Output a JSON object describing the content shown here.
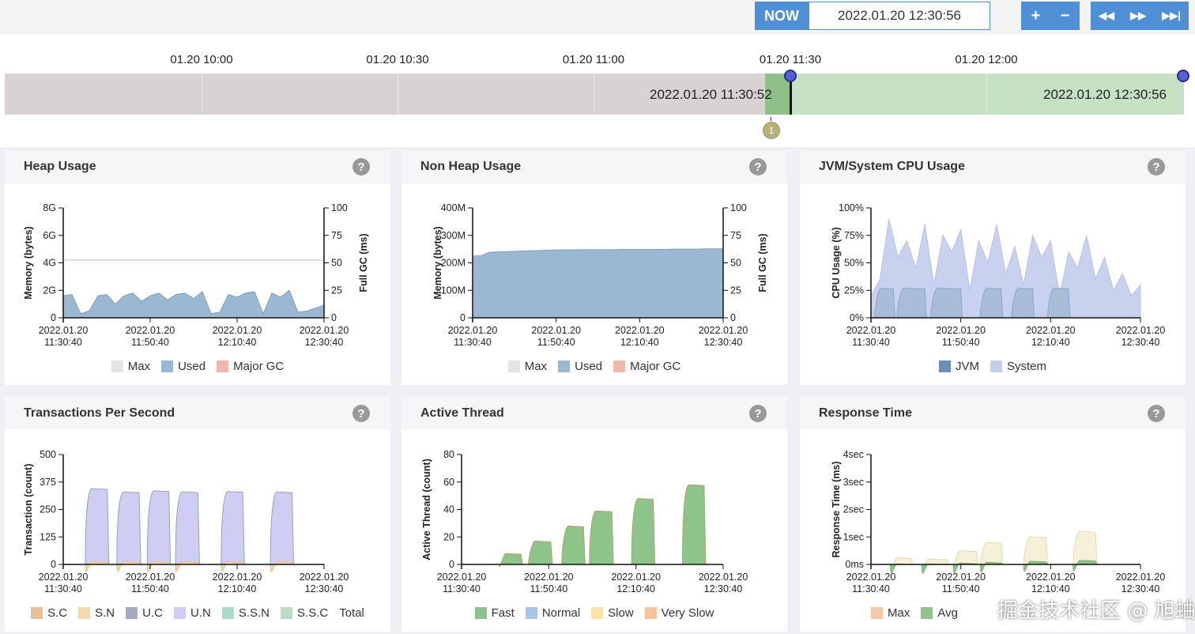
{
  "header": {
    "now_label": "NOW",
    "current_time": "2022.01.20 12:30:56",
    "zoom_in": "+",
    "zoom_out": "−",
    "rewind": "◀◀",
    "forward": "▶▶",
    "end": "▶▶|"
  },
  "timeline": {
    "labels": [
      "01.20 10:00",
      "01.20 10:30",
      "01.20 11:00",
      "01.20 11:30",
      "01.20 12:00"
    ],
    "selection_start": "2022.01.20 11:30:52",
    "selection_end": "2022.01.20 12:30:56",
    "marker": "1",
    "colors": {
      "unselected": "#d8d2d2",
      "selected": "#c7e1c4"
    }
  },
  "panels": [
    {
      "title": "Heap Usage",
      "help": "?",
      "legend": [
        {
          "label": "Max",
          "color": "#e4e4e4"
        },
        {
          "label": "Used",
          "color": "#9bb8d3"
        },
        {
          "label": "Major GC",
          "color": "#f0b8a8"
        }
      ]
    },
    {
      "title": "Non Heap Usage",
      "help": "?",
      "legend": [
        {
          "label": "Max",
          "color": "#e4e4e4"
        },
        {
          "label": "Used",
          "color": "#9bb8d3"
        },
        {
          "label": "Major GC",
          "color": "#f0b8a8"
        }
      ]
    },
    {
      "title": "JVM/System CPU Usage",
      "help": "?",
      "legend": [
        {
          "label": "JVM",
          "color": "#6a8fb8"
        },
        {
          "label": "System",
          "color": "#c4cfeb"
        }
      ]
    },
    {
      "title": "Transactions Per Second",
      "help": "?",
      "legend": [
        {
          "label": "S.C",
          "color": "#e8c09a"
        },
        {
          "label": "S.N",
          "color": "#f6d9a8"
        },
        {
          "label": "U.C",
          "color": "#a8a8c8"
        },
        {
          "label": "U.N",
          "color": "#cfcdf3"
        },
        {
          "label": "S.S.N",
          "color": "#a8dcc8"
        },
        {
          "label": "S.S.C",
          "color": "#b8dcc4"
        },
        {
          "label": "Total",
          "color": ""
        }
      ]
    },
    {
      "title": "Active Thread",
      "help": "?",
      "legend": [
        {
          "label": "Fast",
          "color": "#8cc48a"
        },
        {
          "label": "Normal",
          "color": "#a8c4ec"
        },
        {
          "label": "Slow",
          "color": "#f6e4a8"
        },
        {
          "label": "Very Slow",
          "color": "#f4c49a"
        }
      ]
    },
    {
      "title": "Response Time",
      "help": "?",
      "legend": [
        {
          "label": "Max",
          "color": "#f4c9a8"
        },
        {
          "label": "Avg",
          "color": "#8cc48a"
        }
      ]
    }
  ],
  "chart_data": [
    {
      "type": "area",
      "ylabel": "Memory (bytes)",
      "y2label": "Full GC (ms)",
      "yticks": [
        "0",
        "2G",
        "4G",
        "6G",
        "8G"
      ],
      "y2ticks": [
        "0",
        "25",
        "50",
        "75",
        "100"
      ],
      "ylim": [
        0,
        8
      ],
      "xticks": [
        "2022.01.20 11:30:40",
        "2022.01.20 11:50:40",
        "2022.01.20 12:10:40",
        "2022.01.20 12:30:40"
      ],
      "xlim": [
        "11:30:40",
        "12:30:40"
      ],
      "series": [
        {
          "name": "Max",
          "values": [
            4.2,
            4.2,
            4.2,
            4.2,
            4.2,
            4.2,
            4.2,
            4.2,
            4.2,
            4.2,
            4.2,
            4.2,
            4.2,
            4.2,
            4.2,
            4.2,
            4.2,
            4.2,
            4.2,
            4.2,
            4.2,
            4.2,
            4.2,
            4.2,
            4.2,
            4.2,
            4.2,
            4.2,
            4.2,
            4.2,
            4.2
          ]
        },
        {
          "name": "Used",
          "values": [
            1.6,
            1.7,
            0.3,
            0.5,
            1.6,
            1.7,
            1.0,
            1.6,
            1.8,
            1.2,
            1.6,
            1.8,
            1.3,
            1.7,
            1.8,
            1.4,
            1.9,
            0.3,
            0.4,
            1.7,
            1.5,
            1.8,
            1.9,
            0.3,
            1.8,
            1.5,
            2.0,
            0.4,
            0.5,
            0.7,
            0.9
          ]
        }
      ]
    },
    {
      "type": "area",
      "ylabel": "Memory (bytes)",
      "y2label": "Full GC (ms)",
      "yticks": [
        "0",
        "100M",
        "200M",
        "300M",
        "400M"
      ],
      "y2ticks": [
        "0",
        "25",
        "50",
        "75",
        "100"
      ],
      "ylim": [
        0,
        400
      ],
      "xticks": [
        "2022.01.20 11:30:40",
        "2022.01.20 11:50:40",
        "2022.01.20 12:10:40",
        "2022.01.20 12:30:40"
      ],
      "xlim": [
        "11:30:40",
        "12:30:40"
      ],
      "series": [
        {
          "name": "Used",
          "values": [
            225,
            226,
            238,
            240,
            241,
            242,
            243,
            244,
            245,
            246,
            247,
            247,
            247,
            248,
            248,
            248,
            248,
            248,
            249,
            249,
            249,
            249,
            249,
            249,
            250,
            250,
            250,
            250,
            251,
            251,
            251
          ]
        }
      ]
    },
    {
      "type": "area",
      "ylabel": "CPU Usage (%)",
      "yticks": [
        "0%",
        "25%",
        "50%",
        "75%",
        "100%"
      ],
      "ylim": [
        0,
        100
      ],
      "xticks": [
        "2022.01.20 11:30:40",
        "2022.01.20 11:50:40",
        "2022.01.20 12:10:40",
        "2022.01.20 12:30:40"
      ],
      "xlim": [
        "11:30:40",
        "12:30:40"
      ],
      "series": [
        {
          "name": "System",
          "values": [
            20,
            35,
            90,
            55,
            70,
            45,
            85,
            30,
            75,
            60,
            80,
            25,
            70,
            50,
            85,
            40,
            65,
            30,
            75,
            55,
            70,
            20,
            60,
            45,
            75,
            35,
            55,
            25,
            40,
            20,
            30
          ]
        },
        {
          "name": "JVM",
          "bursts": [
            [
              "11:31:30",
              "11:36:00",
              27
            ],
            [
              "11:36:30",
              "11:43:00",
              27
            ],
            [
              "11:44:00",
              "11:51:00",
              27
            ],
            [
              "11:55:00",
              "12:00:00",
              27
            ],
            [
              "12:02:00",
              "12:07:00",
              27
            ],
            [
              "12:10:00",
              "12:15:00",
              27
            ]
          ]
        }
      ]
    },
    {
      "type": "area",
      "ylabel": "Transaction (count)",
      "yticks": [
        "0",
        "125",
        "250",
        "375",
        "500"
      ],
      "ylim": [
        0,
        500
      ],
      "xticks": [
        "2022.01.20 11:30:40",
        "2022.01.20 11:50:40",
        "2022.01.20 12:10:40",
        "2022.01.20 12:30:40"
      ],
      "xlim": [
        "11:30:40",
        "12:30:40"
      ],
      "series": [
        {
          "name": "U.N",
          "bursts": [
            [
              "11:35:45",
              "11:41:10",
              345
            ],
            [
              "11:43:00",
              "11:48:30",
              330
            ],
            [
              "11:50:00",
              "11:55:20",
              335
            ],
            [
              "11:56:30",
              "12:02:00",
              330
            ],
            [
              "12:07:00",
              "12:12:20",
              332
            ],
            [
              "12:18:20",
              "12:23:40",
              330
            ]
          ]
        },
        {
          "name": "S.N",
          "bursts": [
            [
              "11:35:45",
              "11:41:10",
              12
            ],
            [
              "11:43:00",
              "11:48:30",
              12
            ],
            [
              "11:50:00",
              "11:55:20",
              12
            ],
            [
              "11:56:30",
              "12:02:00",
              12
            ],
            [
              "12:07:00",
              "12:12:20",
              12
            ],
            [
              "12:18:20",
              "12:23:40",
              12
            ]
          ]
        }
      ]
    },
    {
      "type": "area",
      "ylabel": "Active Thread (count)",
      "yticks": [
        "0",
        "20",
        "40",
        "60",
        "80"
      ],
      "ylim": [
        0,
        80
      ],
      "xticks": [
        "2022.01.20 11:30:40",
        "2022.01.20 11:50:40",
        "2022.01.20 12:10:40",
        "2022.01.20 12:30:40"
      ],
      "xlim": [
        "11:30:40",
        "12:30:40"
      ],
      "series": [
        {
          "name": "Fast",
          "bursts": [
            [
              "11:39:20",
              "11:44:40",
              8
            ],
            [
              "11:46:00",
              "11:51:30",
              17
            ],
            [
              "11:53:40",
              "11:59:00",
              28
            ],
            [
              "12:00:00",
              "12:05:30",
              39
            ],
            [
              "12:09:40",
              "12:15:00",
              48
            ],
            [
              "12:21:20",
              "12:26:40",
              58
            ]
          ]
        }
      ]
    },
    {
      "type": "area",
      "ylabel": "Response Time (ms)",
      "yticks": [
        "0ms",
        "1sec",
        "2sec",
        "3sec",
        "4sec"
      ],
      "ylim": [
        0,
        4
      ],
      "xticks": [
        "2022.01.20 11:30:40",
        "2022.01.20 11:50:40",
        "2022.01.20 12:10:40",
        "2022.01.20 12:30:40"
      ],
      "xlim": [
        "11:30:40",
        "12:30:40"
      ],
      "series": [
        {
          "name": "Max",
          "bursts": [
            [
              "11:35:00",
              "11:40:00",
              0.25
            ],
            [
              "11:42:00",
              "11:48:00",
              0.2
            ],
            [
              "11:49:00",
              "11:54:30",
              0.5
            ],
            [
              "11:55:00",
              "12:00:00",
              0.8
            ],
            [
              "12:04:40",
              "12:10:00",
              1.0
            ],
            [
              "12:15:40",
              "12:21:00",
              1.2
            ]
          ]
        },
        {
          "name": "Avg",
          "bursts": [
            [
              "11:35:00",
              "11:40:00",
              0.02
            ],
            [
              "11:42:00",
              "11:48:00",
              0.02
            ],
            [
              "11:49:00",
              "11:54:30",
              0.05
            ],
            [
              "11:55:00",
              "12:00:00",
              0.08
            ],
            [
              "12:04:40",
              "12:10:00",
              0.12
            ],
            [
              "12:15:40",
              "12:21:00",
              0.15
            ]
          ]
        }
      ]
    }
  ]
}
